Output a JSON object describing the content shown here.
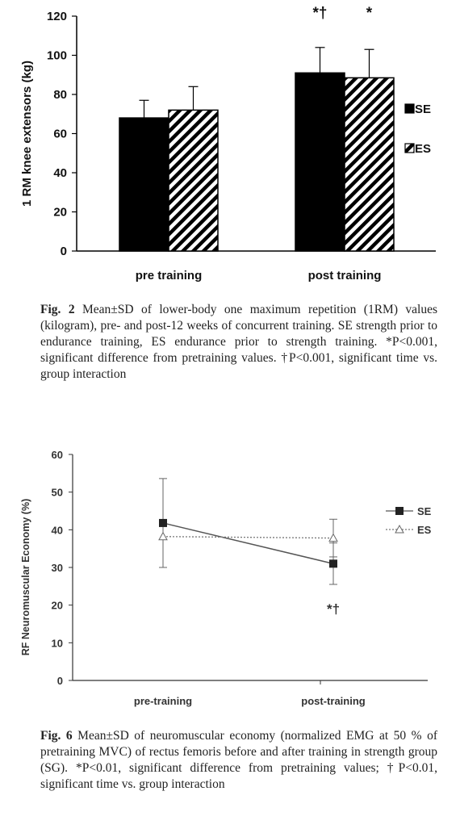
{
  "figures": [
    {
      "caption_label": "Fig. 2",
      "caption_text": "Mean±SD of lower-body one maximum repetition (1RM) values (kilogram), pre- and post-12 weeks of concurrent training. SE strength prior to endurance training, ES endurance prior to strength training. *P<0.001, significant difference from pretraining values. †P<0.001, significant time vs. group interaction"
    },
    {
      "caption_label": "Fig. 6",
      "caption_text": "Mean±SD of neuromuscular economy (normalized EMG at 50 % of pretraining MVC) of rectus femoris before and after training in strength group (SG). *P<0.01, significant difference from pretraining values; †P<0.01, significant time vs. group interaction"
    }
  ],
  "chart_data": [
    {
      "type": "bar",
      "ylabel": "1 RM knee extensors (kg)",
      "xlabel": "",
      "ylim": [
        0,
        120
      ],
      "yticks": [
        0,
        20,
        40,
        60,
        80,
        100,
        120
      ],
      "categories": [
        "pre training",
        "post training"
      ],
      "series": [
        {
          "name": "SE",
          "fill": "solid",
          "color": "#000000",
          "values": [
            68,
            91
          ],
          "sd": [
            9,
            13
          ]
        },
        {
          "name": "ES",
          "fill": "hatched",
          "color": "#000000",
          "values": [
            72,
            88.5
          ],
          "sd": [
            12,
            14.5
          ]
        }
      ],
      "annotations": [
        {
          "category": "post training",
          "series": "SE",
          "text": "*†"
        },
        {
          "category": "post training",
          "series": "ES",
          "text": "*"
        }
      ],
      "legend": "right",
      "grid": false
    },
    {
      "type": "line",
      "ylabel": "RF Neuromuscular Economy (%)",
      "xlabel": "",
      "ylim": [
        0,
        60
      ],
      "yticks": [
        0,
        10,
        20,
        30,
        40,
        50,
        60
      ],
      "categories": [
        "pre-training",
        "post-training"
      ],
      "series": [
        {
          "name": "SE",
          "marker": "filled-square",
          "line": "solid",
          "color": "#555555",
          "values": [
            41.8,
            31
          ],
          "sd": [
            11.8,
            5.5
          ]
        },
        {
          "name": "ES",
          "marker": "open-triangle",
          "line": "dotted",
          "color": "#777777",
          "values": [
            38.2,
            37.8
          ],
          "sd": [
            0,
            5
          ]
        }
      ],
      "annotations": [
        {
          "category": "post-training",
          "series": "SE",
          "text": "*†"
        }
      ],
      "legend": "top-right",
      "grid": false
    }
  ]
}
